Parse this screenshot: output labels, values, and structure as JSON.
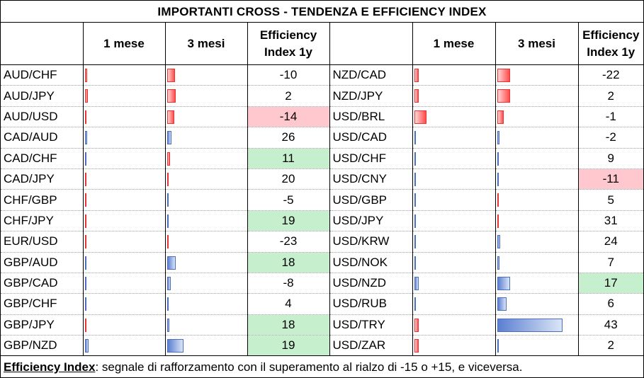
{
  "title": "IMPORTANTI CROSS - TENDENZA E EFFICIENCY INDEX",
  "headers": {
    "month1": "1 mese",
    "month3": "3 mesi",
    "eff_line1": "Efficiency",
    "eff_line2": "Index 1y"
  },
  "left": [
    {
      "pair": "AUD/CHF",
      "m1": -0.3,
      "m3": -1.0,
      "eff": "-10",
      "hl": ""
    },
    {
      "pair": "AUD/JPY",
      "m1": -0.4,
      "m3": -1.1,
      "eff": "2",
      "hl": ""
    },
    {
      "pair": "AUD/USD",
      "m1": -0.2,
      "m3": -0.9,
      "eff": "-14",
      "hl": "neg"
    },
    {
      "pair": "CAD/AUD",
      "m1": 0.3,
      "m3": 0.6,
      "eff": "26",
      "hl": ""
    },
    {
      "pair": "CAD/CHF",
      "m1": 0.0,
      "m3": -0.4,
      "eff": "11",
      "hl": "pos"
    },
    {
      "pair": "CAD/JPY",
      "m1": -0.2,
      "m3": -0.1,
      "eff": "20",
      "hl": ""
    },
    {
      "pair": "CHF/GBP",
      "m1": -0.1,
      "m3": 0.1,
      "eff": "-5",
      "hl": ""
    },
    {
      "pair": "CHF/JPY",
      "m1": -0.2,
      "m3": 0.2,
      "eff": "19",
      "hl": "pos"
    },
    {
      "pair": "EUR/USD",
      "m1": -0.2,
      "m3": -0.2,
      "eff": "-23",
      "hl": ""
    },
    {
      "pair": "GBP/AUD",
      "m1": 0.2,
      "m3": 1.1,
      "eff": "18",
      "hl": "pos"
    },
    {
      "pair": "GBP/CAD",
      "m1": 0.1,
      "m3": 0.5,
      "eff": "-8",
      "hl": ""
    },
    {
      "pair": "GBP/CHF",
      "m1": 0.1,
      "m3": 0.2,
      "eff": "4",
      "hl": ""
    },
    {
      "pair": "GBP/JPY",
      "m1": -0.2,
      "m3": 0.3,
      "eff": "18",
      "hl": "pos"
    },
    {
      "pair": "GBP/NZD",
      "m1": 0.5,
      "m3": 2.0,
      "eff": "19",
      "hl": "pos"
    }
  ],
  "right": [
    {
      "pair": "NZD/CAD",
      "m1": -0.6,
      "m3": -1.6,
      "eff": "-22",
      "hl": ""
    },
    {
      "pair": "NZD/JPY",
      "m1": -0.6,
      "m3": -1.6,
      "eff": "2",
      "hl": ""
    },
    {
      "pair": "USD/BRL",
      "m1": -1.5,
      "m3": -0.8,
      "eff": "-1",
      "hl": ""
    },
    {
      "pair": "USD/CAD",
      "m1": 0.0,
      "m3": 0.3,
      "eff": "-2",
      "hl": ""
    },
    {
      "pair": "USD/CHF",
      "m1": 0.0,
      "m3": 0.0,
      "eff": "9",
      "hl": ""
    },
    {
      "pair": "USD/CNY",
      "m1": 0.0,
      "m3": 0.1,
      "eff": "-11",
      "hl": "neg"
    },
    {
      "pair": "USD/GBP",
      "m1": 0.1,
      "m3": -0.1,
      "eff": "5",
      "hl": ""
    },
    {
      "pair": "USD/JPY",
      "m1": 0.0,
      "m3": -0.2,
      "eff": "31",
      "hl": ""
    },
    {
      "pair": "USD/KRW",
      "m1": 0.2,
      "m3": 0.4,
      "eff": "24",
      "hl": ""
    },
    {
      "pair": "USD/NOK",
      "m1": 0.1,
      "m3": 0.3,
      "eff": "7",
      "hl": ""
    },
    {
      "pair": "USD/NZD",
      "m1": 0.6,
      "m3": 1.6,
      "eff": "17",
      "hl": "pos"
    },
    {
      "pair": "USD/RUB",
      "m1": 0.2,
      "m3": 1.2,
      "eff": "6",
      "hl": ""
    },
    {
      "pair": "USD/TRY",
      "m1": -0.6,
      "m3": 8.0,
      "eff": "43",
      "hl": ""
    },
    {
      "pair": "USD/ZAR",
      "m1": -0.6,
      "m3": 0.0,
      "eff": "2",
      "hl": ""
    }
  ],
  "footer": {
    "label": "Efficiency Index",
    "text": ": segnale di rafforzamento con il superamento al rialzo di -15 o +15, e viceversa."
  }
}
